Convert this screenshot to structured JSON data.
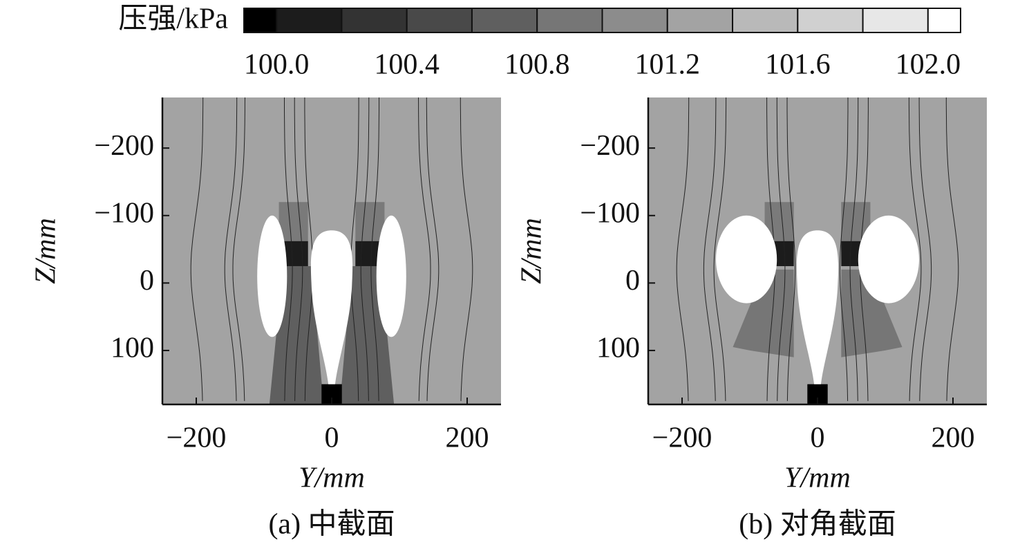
{
  "chart_data": [
    {
      "type": "colorbar",
      "title": "压强/kPa",
      "xlim": [
        99.9,
        102.1
      ],
      "levels": [
        100.0,
        100.2,
        100.4,
        100.6,
        100.8,
        101.0,
        101.2,
        101.4,
        101.6,
        101.8,
        102.0
      ],
      "colors": [
        "#000000",
        "#1c1c1c",
        "#333333",
        "#494949",
        "#5f5f5f",
        "#767676",
        "#8c8c8c",
        "#a3a3a3",
        "#b9b9b9",
        "#d0d0d0",
        "#e7e7e7",
        "#ffffff"
      ],
      "xticks": [
        {
          "value": 100.0,
          "label": "100.0"
        },
        {
          "value": 100.4,
          "label": "100.4"
        },
        {
          "value": 100.8,
          "label": "100.8"
        },
        {
          "value": 101.2,
          "label": "101.2"
        },
        {
          "value": 101.6,
          "label": "101.6"
        },
        {
          "value": 102.0,
          "label": "102.0"
        }
      ]
    },
    {
      "type": "contour",
      "variant": "mid",
      "caption": "(a) 中截面",
      "xlabel": "Y/mm",
      "ylabel": "Z/mm",
      "xlim": [
        -250,
        250
      ],
      "ylim": [
        -275,
        180
      ],
      "xticks": [
        {
          "value": -200,
          "label": "−200"
        },
        0,
        200
      ],
      "yticks": [
        {
          "value": -200,
          "label": "−200"
        },
        {
          "value": -100,
          "label": "−100"
        },
        0,
        100
      ]
    },
    {
      "type": "contour",
      "variant": "diagonal",
      "caption": "(b) 对角截面",
      "xlabel": "Y/mm",
      "ylabel": "Z/mm",
      "xlim": [
        -250,
        250
      ],
      "ylim": [
        -275,
        180
      ],
      "xticks": [
        {
          "value": -200,
          "label": "−200"
        },
        0,
        200
      ],
      "yticks": [
        {
          "value": -200,
          "label": "−200"
        },
        {
          "value": -100,
          "label": "−100"
        },
        0,
        100
      ]
    }
  ]
}
